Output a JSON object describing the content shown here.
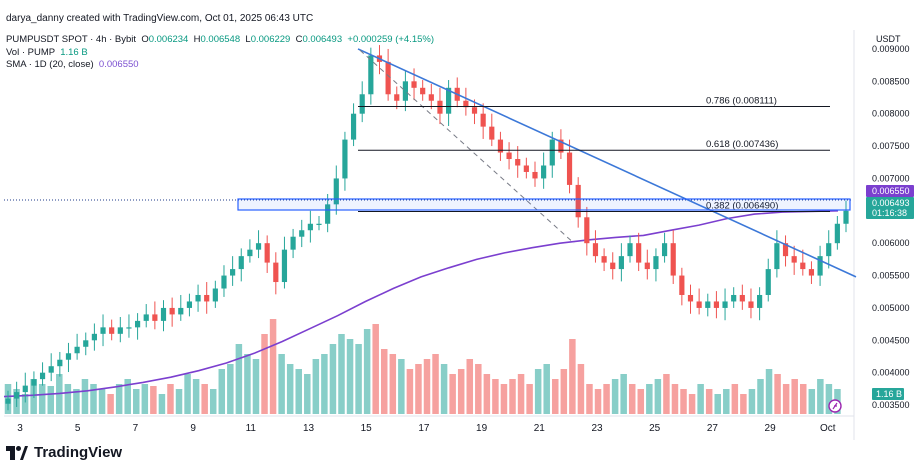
{
  "header": {
    "credit": "darya_danny created with TradingView.com, Oct 01, 2025 06:43 UTC",
    "symbol": "PUMPUSDT SPOT · 4h · Bybit",
    "o_label": "O",
    "o": "0.006234",
    "h_label": "H",
    "h": "0.006548",
    "l_label": "L",
    "l": "0.006229",
    "c_label": "C",
    "c": "0.006493",
    "change": "+0.000259 (+4.15%)",
    "vol_label": "Vol · PUMP",
    "vol": "1.16 B",
    "sma_label": "SMA · 1D (20, close)",
    "sma": "0.006550"
  },
  "chart_data": {
    "type": "candlestick",
    "currency": "USDT",
    "ylim": [
      0.0033,
      0.0092
    ],
    "y_ticks": [
      "0.009000",
      "0.008500",
      "0.008000",
      "0.007500",
      "0.007000",
      "0.006500",
      "0.006000",
      "0.005500",
      "0.005000",
      "0.004500",
      "0.004000",
      "0.003500"
    ],
    "x_ticks": [
      "3",
      "5",
      "7",
      "9",
      "11",
      "13",
      "15",
      "17",
      "19",
      "21",
      "23",
      "25",
      "27",
      "29",
      "Oct"
    ],
    "fib_levels": [
      {
        "label": "0.786 (0.008111)",
        "value": 0.008111
      },
      {
        "label": "0.618 (0.007436)",
        "value": 0.007436
      },
      {
        "label": "0.382 (0.006490)",
        "value": 0.00649
      }
    ],
    "price_badges": {
      "sma": "0.006550",
      "last": "0.006493",
      "countdown": "01:16:38",
      "volume": "1.16 B"
    },
    "close_path": [
      0.0036,
      0.0037,
      0.0038,
      0.0039,
      0.004,
      0.0041,
      0.0042,
      0.0043,
      0.0044,
      0.0045,
      0.0046,
      0.0047,
      0.0046,
      0.0047,
      0.0047,
      0.0048,
      0.0049,
      0.0048,
      0.005,
      0.0049,
      0.005,
      0.0051,
      0.0052,
      0.0051,
      0.0053,
      0.0055,
      0.0056,
      0.0058,
      0.0059,
      0.006,
      0.0057,
      0.0054,
      0.0059,
      0.0061,
      0.0062,
      0.0063,
      0.0063,
      0.0066,
      0.007,
      0.0076,
      0.008,
      0.0083,
      0.0089,
      0.0088,
      0.0083,
      0.0082,
      0.0085,
      0.0084,
      0.0083,
      0.0082,
      0.008,
      0.0084,
      0.0082,
      0.0081,
      0.008,
      0.0078,
      0.0076,
      0.0074,
      0.0073,
      0.0072,
      0.0071,
      0.007,
      0.0072,
      0.0076,
      0.0074,
      0.0069,
      0.0064,
      0.006,
      0.0058,
      0.0057,
      0.0056,
      0.0058,
      0.006,
      0.0057,
      0.0056,
      0.0058,
      0.006,
      0.0055,
      0.0052,
      0.0051,
      0.005,
      0.0051,
      0.005,
      0.0051,
      0.0052,
      0.0051,
      0.005,
      0.0052,
      0.0056,
      0.006,
      0.0058,
      0.0057,
      0.0056,
      0.0055,
      0.0058,
      0.006,
      0.0063,
      0.0065
    ],
    "sma_path": [
      0.00363,
      0.00365,
      0.00368,
      0.00372,
      0.00378,
      0.00385,
      0.00393,
      0.00403,
      0.00415,
      0.0043,
      0.00448,
      0.00468,
      0.00488,
      0.0051,
      0.0053,
      0.00548,
      0.00562,
      0.00575,
      0.00585,
      0.00593,
      0.006,
      0.00605,
      0.00609,
      0.00612,
      0.0062,
      0.00628,
      0.00638,
      0.00645,
      0.00648,
      0.00649,
      0.0065
    ],
    "volume_heights": [
      0.3,
      0.25,
      0.2,
      0.35,
      0.3,
      0.28,
      0.4,
      0.3,
      0.25,
      0.35,
      0.3,
      0.25,
      0.2,
      0.3,
      0.35,
      0.25,
      0.3,
      0.28,
      0.2,
      0.3,
      0.25,
      0.4,
      0.35,
      0.3,
      0.25,
      0.45,
      0.5,
      0.7,
      0.6,
      0.55,
      0.8,
      0.95,
      0.6,
      0.5,
      0.45,
      0.4,
      0.55,
      0.6,
      0.7,
      0.8,
      0.75,
      0.7,
      0.85,
      0.9,
      0.65,
      0.6,
      0.55,
      0.45,
      0.5,
      0.55,
      0.6,
      0.5,
      0.4,
      0.45,
      0.55,
      0.5,
      0.4,
      0.35,
      0.3,
      0.35,
      0.4,
      0.3,
      0.45,
      0.5,
      0.35,
      0.45,
      0.75,
      0.5,
      0.3,
      0.25,
      0.3,
      0.35,
      0.4,
      0.3,
      0.25,
      0.3,
      0.35,
      0.4,
      0.3,
      0.25,
      0.2,
      0.3,
      0.25,
      0.2,
      0.25,
      0.3,
      0.2,
      0.25,
      0.35,
      0.45,
      0.4,
      0.3,
      0.35,
      0.3,
      0.25,
      0.35,
      0.3,
      0.25
    ]
  },
  "branding": {
    "logo": "TradingView"
  },
  "colors": {
    "up": "#26a69a",
    "down": "#ef5350",
    "sma": "#7b3fcf",
    "trend": "#3c78d8",
    "box": "#2962ff"
  }
}
